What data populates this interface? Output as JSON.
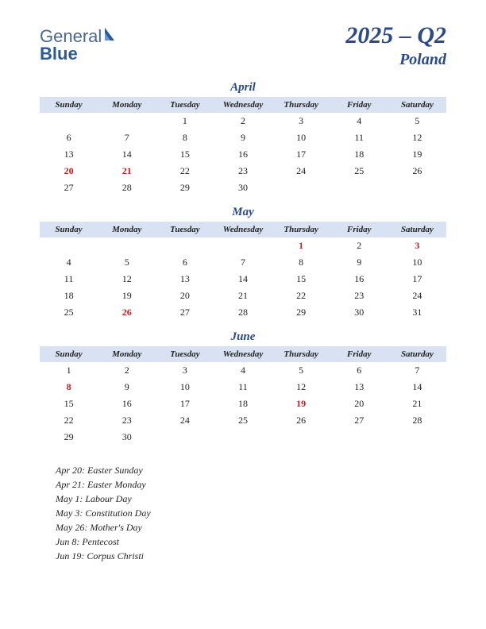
{
  "logo": {
    "part1": "General",
    "part2": "Blue"
  },
  "title": {
    "main": "2025 – Q2",
    "sub": "Poland"
  },
  "day_headers": [
    "Sunday",
    "Monday",
    "Tuesday",
    "Wednesday",
    "Thursday",
    "Friday",
    "Saturday"
  ],
  "colors": {
    "header_bg": "#d8e2f2",
    "title_color": "#2a4a8a",
    "holiday_color": "#c02020",
    "text_color": "#222222",
    "background": "#ffffff"
  },
  "months": [
    {
      "name": "April",
      "weeks": [
        [
          "",
          "",
          "1",
          "2",
          "3",
          "4",
          "5"
        ],
        [
          "6",
          "7",
          "8",
          "9",
          "10",
          "11",
          "12"
        ],
        [
          "13",
          "14",
          "15",
          "16",
          "17",
          "18",
          "19"
        ],
        [
          "20",
          "21",
          "22",
          "23",
          "24",
          "25",
          "26"
        ],
        [
          "27",
          "28",
          "29",
          "30",
          "",
          "",
          ""
        ]
      ],
      "holidays": [
        "20",
        "21"
      ]
    },
    {
      "name": "May",
      "weeks": [
        [
          "",
          "",
          "",
          "",
          "1",
          "2",
          "3"
        ],
        [
          "4",
          "5",
          "6",
          "7",
          "8",
          "9",
          "10"
        ],
        [
          "11",
          "12",
          "13",
          "14",
          "15",
          "16",
          "17"
        ],
        [
          "18",
          "19",
          "20",
          "21",
          "22",
          "23",
          "24"
        ],
        [
          "25",
          "26",
          "27",
          "28",
          "29",
          "30",
          "31"
        ]
      ],
      "holidays": [
        "1",
        "3",
        "26"
      ]
    },
    {
      "name": "June",
      "weeks": [
        [
          "1",
          "2",
          "3",
          "4",
          "5",
          "6",
          "7"
        ],
        [
          "8",
          "9",
          "10",
          "11",
          "12",
          "13",
          "14"
        ],
        [
          "15",
          "16",
          "17",
          "18",
          "19",
          "20",
          "21"
        ],
        [
          "22",
          "23",
          "24",
          "25",
          "26",
          "27",
          "28"
        ],
        [
          "29",
          "30",
          "",
          "",
          "",
          "",
          ""
        ]
      ],
      "holidays": [
        "8",
        "19"
      ]
    }
  ],
  "holiday_list": [
    "Apr 20: Easter Sunday",
    "Apr 21: Easter Monday",
    "May 1: Labour Day",
    "May 3: Constitution Day",
    "May 26: Mother's Day",
    "Jun 8: Pentecost",
    "Jun 19: Corpus Christi"
  ]
}
